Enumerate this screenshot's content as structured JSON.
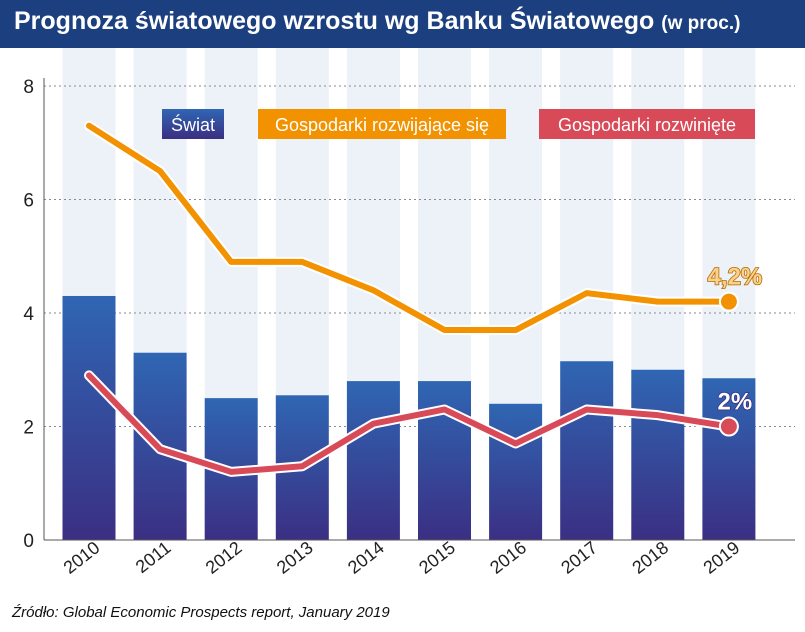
{
  "title": "Prognoza światowego wzrostu wg Banku Światowego",
  "unit": "(w proc.)",
  "source": "Źródło: Global Economic Prospects report,  January 2019",
  "chart_data": {
    "type": "bar",
    "categories": [
      "2010",
      "2011",
      "2012",
      "2013",
      "2014",
      "2015",
      "2016",
      "2017",
      "2018",
      "2019"
    ],
    "ylim": [
      0,
      8
    ],
    "yticks": [
      "0",
      "2",
      "4",
      "6",
      "8"
    ],
    "grid": "horizontal dotted",
    "legend_position": "top",
    "series": [
      {
        "name": "Świat",
        "kind": "bar",
        "color": "#2f5fae",
        "values": [
          4.3,
          3.3,
          2.5,
          2.55,
          2.8,
          2.8,
          2.4,
          3.15,
          3.0,
          2.85
        ]
      },
      {
        "name": "Gospodarki rozwijające się",
        "kind": "line",
        "color": "#f39200",
        "values": [
          7.3,
          6.5,
          4.9,
          4.9,
          4.4,
          3.7,
          3.7,
          4.35,
          4.2,
          4.2
        ],
        "end_label": "4,2%"
      },
      {
        "name": "Gospodarki rozwinięte",
        "kind": "line",
        "color": "#d84a57",
        "values": [
          2.9,
          1.6,
          1.2,
          1.3,
          2.05,
          2.3,
          1.7,
          2.3,
          2.2,
          2.0
        ],
        "end_label": "2%"
      }
    ]
  }
}
